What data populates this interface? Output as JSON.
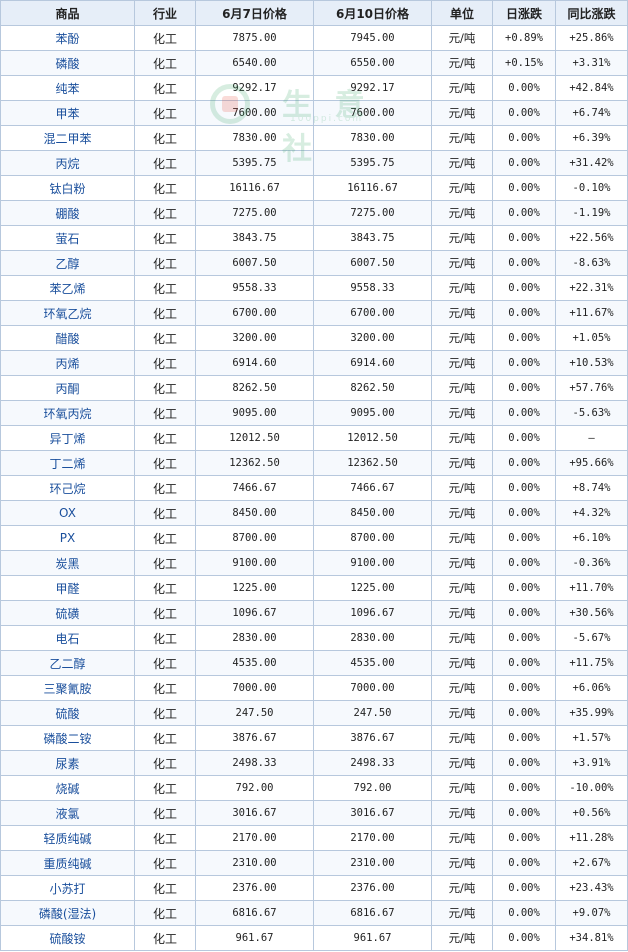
{
  "headers": {
    "product": "商品",
    "industry": "行业",
    "price1": "6月7日价格",
    "price2": "6月10日价格",
    "unit": "单位",
    "daily": "日涨跌",
    "yoy": "同比涨跌"
  },
  "watermark": {
    "text": "生 意 社",
    "url": "100ppi.com"
  },
  "colors": {
    "up": "#e00000",
    "down": "#1a8c1a",
    "link": "#1a4f9c",
    "header_bg": "#e6eef8",
    "border": "#b7c8dd"
  },
  "rows": [
    {
      "name": "苯酚",
      "industry": "化工",
      "p1": "7875.00",
      "p2": "7945.00",
      "unit": "元/吨",
      "daily": "+0.89%",
      "yoy": "+25.86%"
    },
    {
      "name": "磷酸",
      "industry": "化工",
      "p1": "6540.00",
      "p2": "6550.00",
      "unit": "元/吨",
      "daily": "+0.15%",
      "yoy": "+3.31%"
    },
    {
      "name": "纯苯",
      "industry": "化工",
      "p1": "9292.17",
      "p2": "9292.17",
      "unit": "元/吨",
      "daily": "0.00%",
      "yoy": "+42.84%"
    },
    {
      "name": "甲苯",
      "industry": "化工",
      "p1": "7600.00",
      "p2": "7600.00",
      "unit": "元/吨",
      "daily": "0.00%",
      "yoy": "+6.74%"
    },
    {
      "name": "混二甲苯",
      "industry": "化工",
      "p1": "7830.00",
      "p2": "7830.00",
      "unit": "元/吨",
      "daily": "0.00%",
      "yoy": "+6.39%"
    },
    {
      "name": "丙烷",
      "industry": "化工",
      "p1": "5395.75",
      "p2": "5395.75",
      "unit": "元/吨",
      "daily": "0.00%",
      "yoy": "+31.42%"
    },
    {
      "name": "钛白粉",
      "industry": "化工",
      "p1": "16116.67",
      "p2": "16116.67",
      "unit": "元/吨",
      "daily": "0.00%",
      "yoy": "-0.10%"
    },
    {
      "name": "硼酸",
      "industry": "化工",
      "p1": "7275.00",
      "p2": "7275.00",
      "unit": "元/吨",
      "daily": "0.00%",
      "yoy": "-1.19%"
    },
    {
      "name": "萤石",
      "industry": "化工",
      "p1": "3843.75",
      "p2": "3843.75",
      "unit": "元/吨",
      "daily": "0.00%",
      "yoy": "+22.56%"
    },
    {
      "name": "乙醇",
      "industry": "化工",
      "p1": "6007.50",
      "p2": "6007.50",
      "unit": "元/吨",
      "daily": "0.00%",
      "yoy": "-8.63%"
    },
    {
      "name": "苯乙烯",
      "industry": "化工",
      "p1": "9558.33",
      "p2": "9558.33",
      "unit": "元/吨",
      "daily": "0.00%",
      "yoy": "+22.31%"
    },
    {
      "name": "环氧乙烷",
      "industry": "化工",
      "p1": "6700.00",
      "p2": "6700.00",
      "unit": "元/吨",
      "daily": "0.00%",
      "yoy": "+11.67%"
    },
    {
      "name": "醋酸",
      "industry": "化工",
      "p1": "3200.00",
      "p2": "3200.00",
      "unit": "元/吨",
      "daily": "0.00%",
      "yoy": "+1.05%"
    },
    {
      "name": "丙烯",
      "industry": "化工",
      "p1": "6914.60",
      "p2": "6914.60",
      "unit": "元/吨",
      "daily": "0.00%",
      "yoy": "+10.53%"
    },
    {
      "name": "丙酮",
      "industry": "化工",
      "p1": "8262.50",
      "p2": "8262.50",
      "unit": "元/吨",
      "daily": "0.00%",
      "yoy": "+57.76%"
    },
    {
      "name": "环氧丙烷",
      "industry": "化工",
      "p1": "9095.00",
      "p2": "9095.00",
      "unit": "元/吨",
      "daily": "0.00%",
      "yoy": "-5.63%"
    },
    {
      "name": "异丁烯",
      "industry": "化工",
      "p1": "12012.50",
      "p2": "12012.50",
      "unit": "元/吨",
      "daily": "0.00%",
      "yoy": "—"
    },
    {
      "name": "丁二烯",
      "industry": "化工",
      "p1": "12362.50",
      "p2": "12362.50",
      "unit": "元/吨",
      "daily": "0.00%",
      "yoy": "+95.66%"
    },
    {
      "name": "环己烷",
      "industry": "化工",
      "p1": "7466.67",
      "p2": "7466.67",
      "unit": "元/吨",
      "daily": "0.00%",
      "yoy": "+8.74%"
    },
    {
      "name": "OX",
      "industry": "化工",
      "p1": "8450.00",
      "p2": "8450.00",
      "unit": "元/吨",
      "daily": "0.00%",
      "yoy": "+4.32%"
    },
    {
      "name": "PX",
      "industry": "化工",
      "p1": "8700.00",
      "p2": "8700.00",
      "unit": "元/吨",
      "daily": "0.00%",
      "yoy": "+6.10%"
    },
    {
      "name": "炭黑",
      "industry": "化工",
      "p1": "9100.00",
      "p2": "9100.00",
      "unit": "元/吨",
      "daily": "0.00%",
      "yoy": "-0.36%"
    },
    {
      "name": "甲醛",
      "industry": "化工",
      "p1": "1225.00",
      "p2": "1225.00",
      "unit": "元/吨",
      "daily": "0.00%",
      "yoy": "+11.70%"
    },
    {
      "name": "硫磺",
      "industry": "化工",
      "p1": "1096.67",
      "p2": "1096.67",
      "unit": "元/吨",
      "daily": "0.00%",
      "yoy": "+30.56%"
    },
    {
      "name": "电石",
      "industry": "化工",
      "p1": "2830.00",
      "p2": "2830.00",
      "unit": "元/吨",
      "daily": "0.00%",
      "yoy": "-5.67%"
    },
    {
      "name": "乙二醇",
      "industry": "化工",
      "p1": "4535.00",
      "p2": "4535.00",
      "unit": "元/吨",
      "daily": "0.00%",
      "yoy": "+11.75%"
    },
    {
      "name": "三聚氰胺",
      "industry": "化工",
      "p1": "7000.00",
      "p2": "7000.00",
      "unit": "元/吨",
      "daily": "0.00%",
      "yoy": "+6.06%"
    },
    {
      "name": "硫酸",
      "industry": "化工",
      "p1": "247.50",
      "p2": "247.50",
      "unit": "元/吨",
      "daily": "0.00%",
      "yoy": "+35.99%"
    },
    {
      "name": "磷酸二铵",
      "industry": "化工",
      "p1": "3876.67",
      "p2": "3876.67",
      "unit": "元/吨",
      "daily": "0.00%",
      "yoy": "+1.57%"
    },
    {
      "name": "尿素",
      "industry": "化工",
      "p1": "2498.33",
      "p2": "2498.33",
      "unit": "元/吨",
      "daily": "0.00%",
      "yoy": "+3.91%"
    },
    {
      "name": "烧碱",
      "industry": "化工",
      "p1": "792.00",
      "p2": "792.00",
      "unit": "元/吨",
      "daily": "0.00%",
      "yoy": "-10.00%"
    },
    {
      "name": "液氯",
      "industry": "化工",
      "p1": "3016.67",
      "p2": "3016.67",
      "unit": "元/吨",
      "daily": "0.00%",
      "yoy": "+0.56%"
    },
    {
      "name": "轻质纯碱",
      "industry": "化工",
      "p1": "2170.00",
      "p2": "2170.00",
      "unit": "元/吨",
      "daily": "0.00%",
      "yoy": "+11.28%"
    },
    {
      "name": "重质纯碱",
      "industry": "化工",
      "p1": "2310.00",
      "p2": "2310.00",
      "unit": "元/吨",
      "daily": "0.00%",
      "yoy": "+2.67%"
    },
    {
      "name": "小苏打",
      "industry": "化工",
      "p1": "2376.00",
      "p2": "2376.00",
      "unit": "元/吨",
      "daily": "0.00%",
      "yoy": "+23.43%"
    },
    {
      "name": "磷酸(湿法)",
      "industry": "化工",
      "p1": "6816.67",
      "p2": "6816.67",
      "unit": "元/吨",
      "daily": "0.00%",
      "yoy": "+9.07%"
    },
    {
      "name": "硫酸铵",
      "industry": "化工",
      "p1": "961.67",
      "p2": "961.67",
      "unit": "元/吨",
      "daily": "0.00%",
      "yoy": "+34.81%"
    }
  ]
}
